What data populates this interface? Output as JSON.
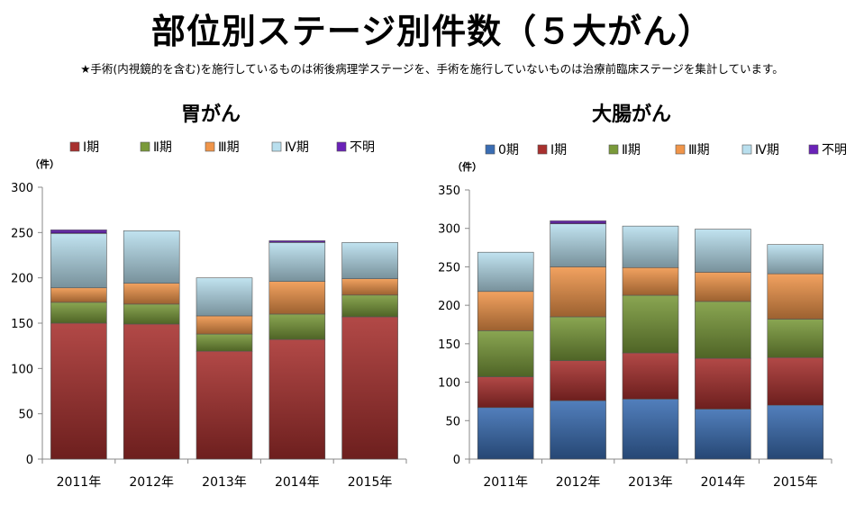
{
  "title": "部位別ステージ別件数（５大がん）",
  "subtitle": "★手術(内視鏡的を含む)を施行しているものは術後病理学ステージを、手術を施行していないものは治療前臨床ステージを集計しています。",
  "colors": {
    "stage0": "#3a6db3",
    "stage1": "#a8302e",
    "stage2": "#7a9a3a",
    "stage3": "#f0954a",
    "stage4": "#b9dfee",
    "unknown": "#6a22b8"
  },
  "chart_data": [
    {
      "type": "bar",
      "stacked": true,
      "title": "胃がん",
      "ylabel": "（件）",
      "ylim": [
        0,
        300
      ],
      "yticks": [
        0,
        50,
        100,
        150,
        200,
        250,
        300
      ],
      "categories": [
        "2011年",
        "2012年",
        "2013年",
        "2014年",
        "2015年"
      ],
      "series": [
        {
          "name": "Ⅰ期",
          "color_key": "stage1",
          "values": [
            150,
            149,
            119,
            132,
            157
          ]
        },
        {
          "name": "Ⅱ期",
          "color_key": "stage2",
          "values": [
            23,
            22,
            19,
            28,
            24
          ]
        },
        {
          "name": "Ⅲ期",
          "color_key": "stage3",
          "values": [
            16,
            23,
            20,
            36,
            18
          ]
        },
        {
          "name": "Ⅳ期",
          "color_key": "stage4",
          "values": [
            60,
            58,
            42,
            43,
            40
          ]
        },
        {
          "name": "不明",
          "color_key": "unknown",
          "values": [
            4,
            0,
            0,
            2,
            0
          ]
        }
      ]
    },
    {
      "type": "bar",
      "stacked": true,
      "title": "大腸がん",
      "ylabel": "（件）",
      "ylim": [
        0,
        350
      ],
      "yticks": [
        0,
        50,
        100,
        150,
        200,
        250,
        300,
        350
      ],
      "categories": [
        "2011年",
        "2012年",
        "2013年",
        "2014年",
        "2015年"
      ],
      "series": [
        {
          "name": "0期",
          "color_key": "stage0",
          "values": [
            67,
            76,
            78,
            65,
            70
          ]
        },
        {
          "name": "Ⅰ期",
          "color_key": "stage1",
          "values": [
            40,
            52,
            60,
            66,
            62
          ]
        },
        {
          "name": "Ⅱ期",
          "color_key": "stage2",
          "values": [
            60,
            57,
            75,
            74,
            50
          ]
        },
        {
          "name": "Ⅲ期",
          "color_key": "stage3",
          "values": [
            51,
            65,
            36,
            38,
            59
          ]
        },
        {
          "name": "Ⅳ期",
          "color_key": "stage4",
          "values": [
            51,
            56,
            54,
            56,
            38
          ]
        },
        {
          "name": "不明",
          "color_key": "unknown",
          "values": [
            0,
            4,
            0,
            0,
            0
          ]
        }
      ]
    }
  ]
}
